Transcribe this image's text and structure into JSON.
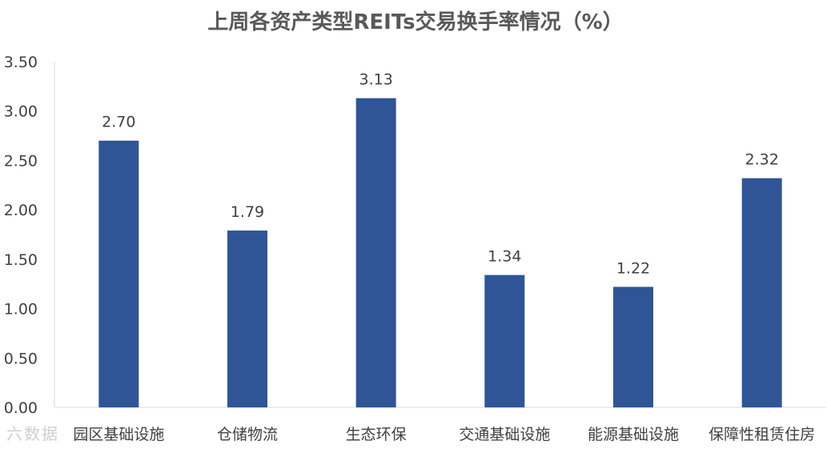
{
  "chart_data": {
    "type": "bar",
    "title": "上周各资产类型REITs交易换手率情况（%）",
    "categories": [
      "园区基础设施",
      "仓储物流",
      "生态环保",
      "交通基础设施",
      "能源基础设施",
      "保障性租赁住房"
    ],
    "values": [
      2.7,
      1.79,
      3.13,
      1.34,
      1.22,
      2.32
    ],
    "data_labels": [
      "2.70",
      "1.79",
      "3.13",
      "1.34",
      "1.22",
      "2.32"
    ],
    "ylim": [
      0,
      3.5
    ],
    "yticks": [
      "0.00",
      "0.50",
      "1.00",
      "1.50",
      "2.00",
      "2.50",
      "3.00",
      "3.50"
    ],
    "ytick_values": [
      0,
      0.5,
      1.0,
      1.5,
      2.0,
      2.5,
      3.0,
      3.5
    ],
    "xlabel": "",
    "ylabel": "",
    "grid": false,
    "legend": "none",
    "bar_color": "#2F5597"
  },
  "watermark": "六数据"
}
